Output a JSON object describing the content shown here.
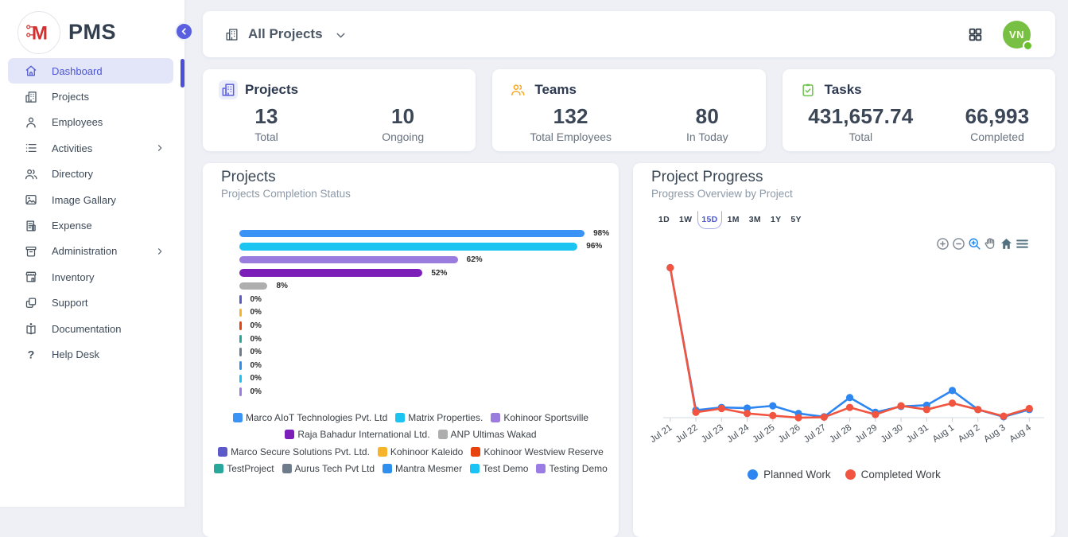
{
  "app": {
    "name": "PMS"
  },
  "sidebar": {
    "logo_text": "PMS",
    "items": [
      {
        "label": "Dashboard",
        "icon": "home-icon",
        "active": true,
        "has_submenu": false
      },
      {
        "label": "Projects",
        "icon": "building-icon",
        "active": false,
        "has_submenu": false
      },
      {
        "label": "Employees",
        "icon": "person-icon",
        "active": false,
        "has_submenu": false
      },
      {
        "label": "Activities",
        "icon": "list-icon",
        "active": false,
        "has_submenu": true
      },
      {
        "label": "Directory",
        "icon": "people-icon",
        "active": false,
        "has_submenu": false
      },
      {
        "label": "Image Gallary",
        "icon": "image-icon",
        "active": false,
        "has_submenu": false
      },
      {
        "label": "Expense",
        "icon": "receipt-icon",
        "active": false,
        "has_submenu": false
      },
      {
        "label": "Administration",
        "icon": "archive-icon",
        "active": false,
        "has_submenu": true
      },
      {
        "label": "Inventory",
        "icon": "storefront-icon",
        "active": false,
        "has_submenu": false
      },
      {
        "label": "Support",
        "icon": "copy-icon",
        "active": false,
        "has_submenu": false
      },
      {
        "label": "Documentation",
        "icon": "book-icon",
        "active": false,
        "has_submenu": false
      },
      {
        "label": "Help Desk",
        "icon": "question-icon",
        "active": false,
        "has_submenu": false
      }
    ]
  },
  "topbar": {
    "project_filter": "All Projects",
    "filter_icon": "building-icon",
    "caret_icon": "chevron-down-icon",
    "apps_icon": "apps-grid-icon",
    "avatar": {
      "initials": "VN",
      "status": "online",
      "color": "#77c043"
    }
  },
  "stats_cards": [
    {
      "title": "Projects",
      "icon": "building-icon",
      "icon_color": "#5b5fe0",
      "icon_bg": "#ecedfb",
      "stats": [
        {
          "value": "13",
          "label": "Total"
        },
        {
          "value": "10",
          "label": "Ongoing"
        }
      ]
    },
    {
      "title": "Teams",
      "icon": "team-icon",
      "icon_color": "#f7a823",
      "icon_bg": "transparent",
      "stats": [
        {
          "value": "132",
          "label": "Total Employees"
        },
        {
          "value": "80",
          "label": "In Today"
        }
      ]
    },
    {
      "title": "Tasks",
      "icon": "clipboard-check-icon",
      "icon_color": "#6cc24a",
      "icon_bg": "transparent",
      "stats": [
        {
          "value": "431,657.74",
          "label": "Total"
        },
        {
          "value": "66,993",
          "label": "Completed"
        }
      ]
    }
  ],
  "projects_panel": {
    "title": "Projects",
    "subtitle": "Projects Completion Status"
  },
  "progress_panel": {
    "title": "Project Progress",
    "subtitle": "Progress Overview by Project",
    "ranges": [
      "1D",
      "1W",
      "15D",
      "1M",
      "3M",
      "1Y",
      "5Y"
    ],
    "active_range": "15D",
    "modebar": [
      "zoom-in-icon",
      "zoom-out-icon",
      "zoom-select-icon",
      "pan-icon",
      "reset-axes-home-icon",
      "menu-icon"
    ]
  },
  "chart_data": [
    {
      "type": "bar",
      "orientation": "horizontal",
      "title": "Projects",
      "subtitle": "Projects Completion Status",
      "xlabel": "",
      "ylabel": "",
      "xlim": [
        0,
        100
      ],
      "grid": false,
      "categories": [
        "Marco AIoT Technologies Pvt. Ltd",
        "Matrix Properties.",
        "Kohinoor Sportsville",
        "Raja Bahadur International Ltd.",
        "ANP Ultimas Wakad",
        "Marco Secure Solutions Pvt. Ltd.",
        "Kohinoor Kaleido",
        "Kohinoor Westview Reserve",
        "TestProject",
        "Aurus Tech Pvt Ltd",
        "Mantra Mesmer",
        "Test Demo",
        "Testing Demo"
      ],
      "values": [
        98,
        96,
        62,
        52,
        8,
        0,
        0,
        0,
        0,
        0,
        0,
        0,
        0
      ],
      "value_labels": [
        "98%",
        "96%",
        "62%",
        "52%",
        "8%",
        "0%",
        "0%",
        "0%",
        "0%",
        "0%",
        "0%",
        "0%",
        "0%"
      ],
      "colors": [
        "#3b93f5",
        "#1cc5f1",
        "#9a7bde",
        "#7c1fb8",
        "#aeaeae",
        "#5c59c9",
        "#f7b32a",
        "#e8430f",
        "#2aa79b",
        "#6e7b8a",
        "#2f8fef",
        "#19c3f5",
        "#9b7be4"
      ],
      "legend_position": "bottom",
      "legend_rows": [
        [
          0,
          1,
          2
        ],
        [
          3,
          4
        ],
        [
          5,
          6,
          7
        ],
        [
          8,
          9,
          10,
          11,
          12
        ]
      ]
    },
    {
      "type": "line",
      "title": "Project Progress",
      "subtitle": "Progress Overview by Project",
      "xlabel": "",
      "ylabel": "",
      "ylim": [
        0,
        105
      ],
      "grid": false,
      "x": [
        "Jul 21",
        "Jul 22",
        "Jul 23",
        "Jul 24",
        "Jul 25",
        "Jul 26",
        "Jul 27",
        "Jul 28",
        "Jul 29",
        "Jul 30",
        "Jul 31",
        "Aug 1",
        "Aug 2",
        "Aug 3",
        "Aug 4"
      ],
      "series": [
        {
          "name": "Planned Work",
          "color": "#2e86f0",
          "values": [
            100,
            5,
            6.8,
            6.4,
            7.9,
            2.8,
            0.6,
            13.4,
            3.6,
            7.5,
            8.3,
            18.1,
            5.4,
            0.6,
            5.4
          ]
        },
        {
          "name": "Completed Work",
          "color": "#f1543f",
          "values": [
            100,
            3.6,
            6.1,
            2.8,
            1.4,
            0,
            0.3,
            6.8,
            2.1,
            7.9,
            5.4,
            9.7,
            5.4,
            1,
            6.1
          ]
        }
      ],
      "legend_position": "bottom"
    }
  ]
}
